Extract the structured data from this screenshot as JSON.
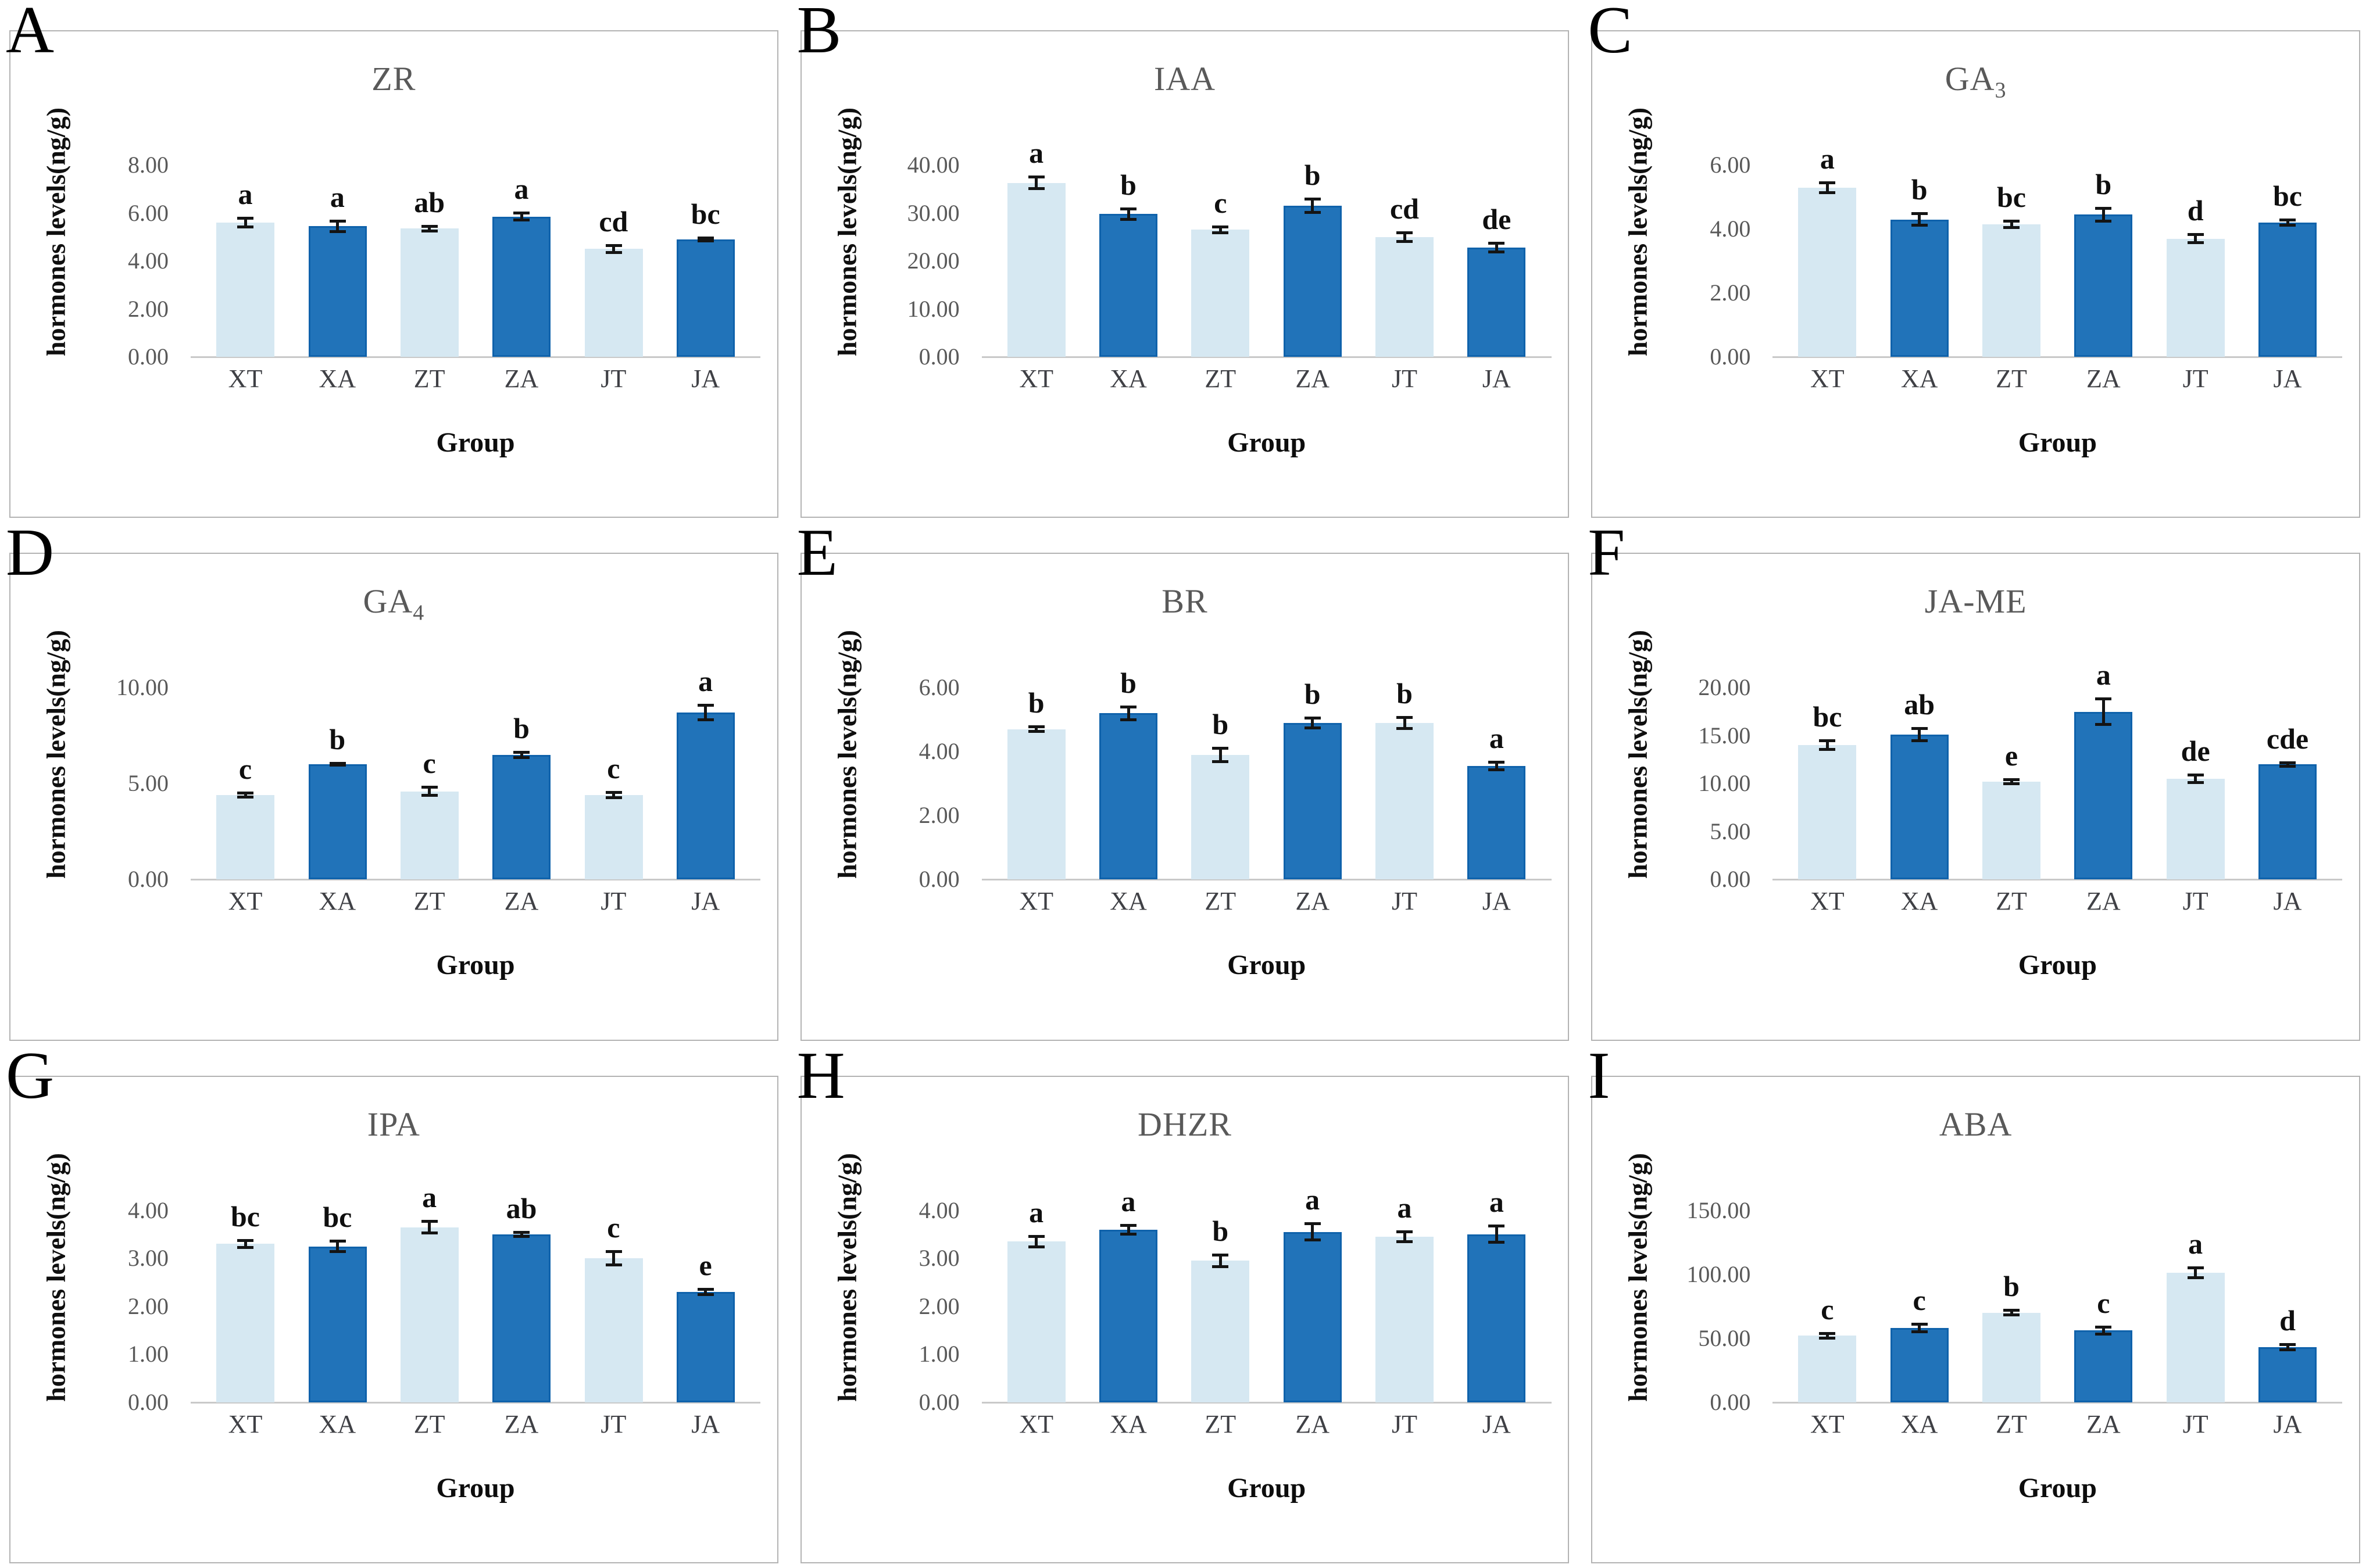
{
  "figure_title": "hormone levels figure",
  "colors": {
    "light_bar": "#d6e8f2",
    "dark_bar": "#2173b9",
    "dark_bar_border": "#0f62ab",
    "axis_line": "#c9c9c9",
    "tick_text": "#595959",
    "title_text": "#595959",
    "category_text": "#3f4045",
    "sig_text": "#0f0f0f",
    "box_border": "#b3b3b3",
    "bar_pattern": [
      "light",
      "dark",
      "light",
      "dark",
      "light",
      "dark"
    ]
  },
  "chart_data": [
    {
      "panel": "A",
      "type": "bar",
      "title": "ZR",
      "title_sub": "",
      "ylabel": "hormones levels(ng/g)",
      "xlabel": "Group",
      "categories": [
        "XT",
        "XA",
        "ZT",
        "ZA",
        "JT",
        "JA"
      ],
      "values": [
        5.6,
        5.45,
        5.35,
        5.85,
        4.5,
        4.9
      ],
      "errors": [
        0.25,
        0.28,
        0.15,
        0.2,
        0.2,
        0.12
      ],
      "sig_letters": [
        "a",
        "a",
        "ab",
        "a",
        "cd",
        "bc"
      ],
      "ytick_labels": [
        "0.00",
        "2.00",
        "4.00",
        "6.00",
        "8.00"
      ],
      "ylim": [
        0,
        8
      ],
      "grid": false,
      "legend": "none"
    },
    {
      "panel": "B",
      "type": "bar",
      "title": "IAA",
      "title_sub": "",
      "ylabel": "hormones levels(ng/g)",
      "xlabel": "Group",
      "categories": [
        "XT",
        "XA",
        "ZT",
        "ZA",
        "JT",
        "JA"
      ],
      "values": [
        36.3,
        29.8,
        26.5,
        31.5,
        25.0,
        22.8
      ],
      "errors": [
        1.5,
        1.4,
        0.9,
        1.7,
        1.2,
        1.2
      ],
      "sig_letters": [
        "a",
        "b",
        "c",
        "b",
        "cd",
        "de"
      ],
      "ytick_labels": [
        "0.00",
        "10.00",
        "20.00",
        "30.00",
        "40.00"
      ],
      "ylim": [
        0,
        40
      ],
      "grid": false,
      "legend": "none"
    },
    {
      "panel": "C",
      "type": "bar",
      "title": "GA",
      "title_sub": "3",
      "ylabel": "hormones levels(ng/g)",
      "xlabel": "Group",
      "categories": [
        "XT",
        "XA",
        "ZT",
        "ZA",
        "JT",
        "JA"
      ],
      "values": [
        5.3,
        4.3,
        4.15,
        4.45,
        3.7,
        4.2
      ],
      "errors": [
        0.2,
        0.22,
        0.15,
        0.25,
        0.18,
        0.13
      ],
      "sig_letters": [
        "a",
        "b",
        "bc",
        "b",
        "d",
        "bc"
      ],
      "ytick_labels": [
        "0.00",
        "2.00",
        "4.00",
        "6.00"
      ],
      "ylim": [
        0,
        6
      ],
      "grid": false,
      "legend": "none"
    },
    {
      "panel": "D",
      "type": "bar",
      "title": "GA",
      "title_sub": "4",
      "ylabel": "hormones levels(ng/g)",
      "xlabel": "Group",
      "categories": [
        "XT",
        "XA",
        "ZT",
        "ZA",
        "JT",
        "JA"
      ],
      "values": [
        4.4,
        6.0,
        4.6,
        6.5,
        4.4,
        8.7
      ],
      "errors": [
        0.18,
        0.12,
        0.28,
        0.22,
        0.22,
        0.45
      ],
      "sig_letters": [
        "c",
        "b",
        "c",
        "b",
        "c",
        "a"
      ],
      "ytick_labels": [
        "0.00",
        "5.00",
        "10.00"
      ],
      "ylim": [
        0,
        10
      ],
      "grid": false,
      "legend": "none"
    },
    {
      "panel": "E",
      "type": "bar",
      "title": "BR",
      "title_sub": "",
      "ylabel": "hormones levels(ng/g)",
      "xlabel": "Group",
      "categories": [
        "XT",
        "XA",
        "ZT",
        "ZA",
        "JT",
        "JA"
      ],
      "values": [
        4.7,
        5.2,
        3.9,
        4.9,
        4.9,
        3.55
      ],
      "errors": [
        0.12,
        0.25,
        0.25,
        0.2,
        0.22,
        0.17
      ],
      "sig_letters": [
        "b",
        "b",
        "b",
        "b",
        "b",
        "a"
      ],
      "ytick_labels": [
        "0.00",
        "2.00",
        "4.00",
        "6.00"
      ],
      "ylim": [
        0,
        6
      ],
      "grid": false,
      "legend": "none"
    },
    {
      "panel": "F",
      "type": "bar",
      "title": "JA-ME",
      "title_sub": "",
      "ylabel": "hormones levels(ng/g)",
      "xlabel": "Group",
      "categories": [
        "XT",
        "XA",
        "ZT",
        "ZA",
        "JT",
        "JA"
      ],
      "values": [
        14.0,
        15.1,
        10.2,
        17.5,
        10.5,
        12.0
      ],
      "errors": [
        0.6,
        0.8,
        0.35,
        1.5,
        0.55,
        0.35
      ],
      "sig_letters": [
        "bc",
        "ab",
        "e",
        "a",
        "de",
        "cde"
      ],
      "ytick_labels": [
        "0.00",
        "5.00",
        "10.00",
        "15.00",
        "20.00"
      ],
      "ylim": [
        0,
        20
      ],
      "grid": false,
      "legend": "none"
    },
    {
      "panel": "G",
      "type": "bar",
      "title": "IPA",
      "title_sub": "",
      "ylabel": "hormones levels(ng/g)",
      "xlabel": "Group",
      "categories": [
        "XT",
        "XA",
        "ZT",
        "ZA",
        "JT",
        "JA"
      ],
      "values": [
        3.3,
        3.25,
        3.65,
        3.5,
        3.0,
        2.3
      ],
      "errors": [
        0.1,
        0.14,
        0.15,
        0.07,
        0.17,
        0.08
      ],
      "sig_letters": [
        "bc",
        "bc",
        "a",
        "ab",
        "c",
        "e"
      ],
      "ytick_labels": [
        "0.00",
        "1.00",
        "2.00",
        "3.00",
        "4.00"
      ],
      "ylim": [
        0,
        4
      ],
      "grid": false,
      "legend": "none"
    },
    {
      "panel": "H",
      "type": "bar",
      "title": "DHZR",
      "title_sub": "",
      "ylabel": "hormones levels(ng/g)",
      "xlabel": "Group",
      "categories": [
        "XT",
        "XA",
        "ZT",
        "ZA",
        "JT",
        "JA"
      ],
      "values": [
        3.35,
        3.6,
        2.95,
        3.55,
        3.45,
        3.5
      ],
      "errors": [
        0.14,
        0.12,
        0.15,
        0.2,
        0.13,
        0.2
      ],
      "sig_letters": [
        "a",
        "a",
        "b",
        "a",
        "a",
        "a"
      ],
      "ytick_labels": [
        "0.00",
        "1.00",
        "2.00",
        "3.00",
        "4.00"
      ],
      "ylim": [
        0,
        4
      ],
      "grid": false,
      "legend": "none"
    },
    {
      "panel": "I",
      "type": "bar",
      "title": "ABA",
      "title_sub": "",
      "ylabel": "hormones levels(ng/g)",
      "xlabel": "Group",
      "categories": [
        "XT",
        "XA",
        "ZT",
        "ZA",
        "JT",
        "JA"
      ],
      "values": [
        52,
        58,
        70,
        56,
        101,
        43
      ],
      "errors": [
        3,
        4,
        3,
        4,
        5,
        3
      ],
      "sig_letters": [
        "c",
        "c",
        "b",
        "c",
        "a",
        "d"
      ],
      "ytick_labels": [
        "0.00",
        "50.00",
        "100.00",
        "150.00"
      ],
      "ylim": [
        0,
        150
      ],
      "grid": false,
      "legend": "none"
    }
  ]
}
